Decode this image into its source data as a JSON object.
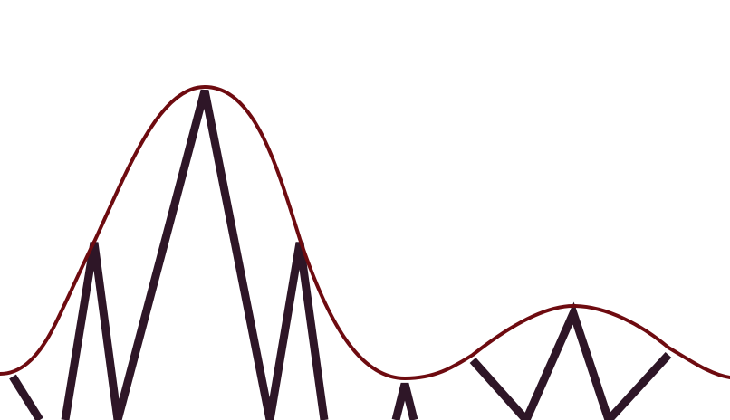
{
  "colors": {
    "background": "#ffffff",
    "envelope": "#6e0b10",
    "zigzag": "#2e1627"
  }
}
